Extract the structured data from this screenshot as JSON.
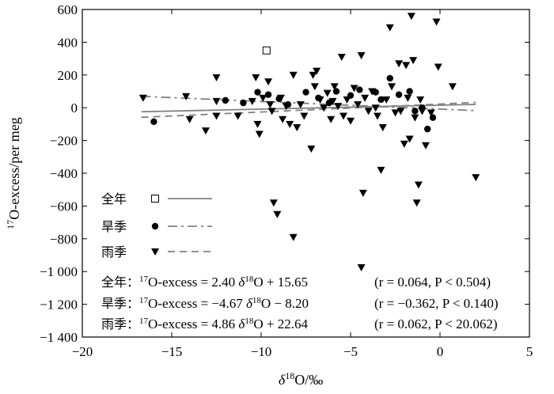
{
  "chart_data": {
    "type": "scatter",
    "xlabel": "δ18O/‰",
    "ylabel": "17O-excess/per meg",
    "xlim": [
      -20,
      5
    ],
    "ylim": [
      -1400,
      600
    ],
    "x_ticks": [
      -20,
      -15,
      -10,
      -5,
      0,
      5
    ],
    "y_ticks": [
      600,
      400,
      200,
      0,
      -200,
      -400,
      -600,
      -800,
      -1000,
      -1200,
      -1400
    ],
    "x_tick_labels": [
      "−20",
      "−15",
      "−10",
      "−5",
      "0",
      "5"
    ],
    "y_tick_labels": [
      "600",
      "400",
      "200",
      "0",
      "−200",
      "−400",
      "−600",
      "−800",
      "−1 000",
      "−1 200",
      "−1 400"
    ],
    "grid": false,
    "legend_position": "bottom-left",
    "series": [
      {
        "name": "全年",
        "marker": "square-open",
        "line_style": "solid",
        "color": "#808080",
        "fit": {
          "slope": 2.4,
          "intercept": 15.65,
          "x_range": [
            -16.7,
            2.0
          ]
        },
        "points": [
          [
            -9.7,
            350
          ]
        ]
      },
      {
        "name": "旱季",
        "marker": "circle",
        "line_style": "dashdot",
        "color": "#808080",
        "fit": {
          "slope": -4.67,
          "intercept": -8.2,
          "x_range": [
            -16.7,
            2.0
          ]
        },
        "points": [
          [
            -16.0,
            -85
          ],
          [
            -12.0,
            45
          ],
          [
            -11.0,
            30
          ],
          [
            -10.2,
            95
          ],
          [
            -9.6,
            80
          ],
          [
            -9.0,
            55
          ],
          [
            -8.5,
            20
          ],
          [
            -7.5,
            95
          ],
          [
            -6.8,
            60
          ],
          [
            -6.2,
            30
          ],
          [
            -5.8,
            100
          ],
          [
            -5.0,
            75
          ],
          [
            -4.5,
            110
          ],
          [
            -3.6,
            95
          ],
          [
            -3.3,
            50
          ],
          [
            -2.8,
            180
          ],
          [
            -2.3,
            80
          ],
          [
            -1.7,
            100
          ],
          [
            -1.4,
            -20
          ],
          [
            -1.0,
            0
          ],
          [
            -0.7,
            -130
          ],
          [
            -0.4,
            -60
          ]
        ]
      },
      {
        "name": "雨季",
        "marker": "triangle-down",
        "line_style": "dashed",
        "color": "#808080",
        "fit": {
          "slope": 4.86,
          "intercept": 22.64,
          "x_range": [
            -16.7,
            2.0
          ]
        },
        "points": [
          [
            -16.6,
            60
          ],
          [
            -14.2,
            70
          ],
          [
            -14.0,
            -70
          ],
          [
            -13.1,
            -140
          ],
          [
            -12.5,
            185
          ],
          [
            -12.5,
            40
          ],
          [
            -12.5,
            -50
          ],
          [
            -11.3,
            -50
          ],
          [
            -10.5,
            40
          ],
          [
            -10.3,
            185
          ],
          [
            -10.2,
            -100
          ],
          [
            -10.1,
            -160
          ],
          [
            -9.9,
            60
          ],
          [
            -9.6,
            160
          ],
          [
            -9.5,
            20
          ],
          [
            -9.4,
            -20
          ],
          [
            -9.3,
            -580
          ],
          [
            -9.1,
            -650
          ],
          [
            -8.9,
            60
          ],
          [
            -8.8,
            -70
          ],
          [
            -8.6,
            10
          ],
          [
            -8.4,
            -100
          ],
          [
            -8.2,
            200
          ],
          [
            -8.2,
            -790
          ],
          [
            -8.0,
            -120
          ],
          [
            -7.8,
            20
          ],
          [
            -7.6,
            -50
          ],
          [
            -7.2,
            -250
          ],
          [
            -7.1,
            200
          ],
          [
            -7.0,
            130
          ],
          [
            -6.9,
            225
          ],
          [
            -6.7,
            50
          ],
          [
            -6.5,
            0
          ],
          [
            -6.3,
            90
          ],
          [
            -6.1,
            -70
          ],
          [
            -6.0,
            40
          ],
          [
            -5.9,
            130
          ],
          [
            -5.7,
            10
          ],
          [
            -5.5,
            310
          ],
          [
            -5.4,
            -50
          ],
          [
            -5.2,
            50
          ],
          [
            -5.0,
            -80
          ],
          [
            -4.8,
            120
          ],
          [
            -4.6,
            20
          ],
          [
            -4.4,
            320
          ],
          [
            -4.3,
            -520
          ],
          [
            -4.2,
            60
          ],
          [
            -4.0,
            -20
          ],
          [
            -3.8,
            100
          ],
          [
            -3.6,
            0
          ],
          [
            -3.5,
            -50
          ],
          [
            -3.3,
            -380
          ],
          [
            -3.2,
            -120
          ],
          [
            -3.0,
            50
          ],
          [
            -2.8,
            490
          ],
          [
            -2.7,
            130
          ],
          [
            -2.5,
            -30
          ],
          [
            -2.3,
            270
          ],
          [
            -2.2,
            -20
          ],
          [
            -2.0,
            -220
          ],
          [
            -1.9,
            260
          ],
          [
            -1.8,
            60
          ],
          [
            -1.7,
            -190
          ],
          [
            -1.6,
            560
          ],
          [
            -1.5,
            290
          ],
          [
            -1.4,
            -60
          ],
          [
            -1.3,
            -580
          ],
          [
            -1.2,
            -470
          ],
          [
            -1.1,
            50
          ],
          [
            -1.0,
            -20
          ],
          [
            -0.8,
            -230
          ],
          [
            -0.5,
            -30
          ],
          [
            -0.2,
            525
          ],
          [
            -0.1,
            250
          ],
          [
            0.7,
            130
          ],
          [
            2.0,
            -425
          ],
          [
            -4.4,
            -975
          ]
        ]
      }
    ],
    "equations": [
      {
        "label": "全年：",
        "left": "17O-excess = 2.40 δ18O + 15.65",
        "stats": "(r = 0.064, P < 0.504)"
      },
      {
        "label": "旱季：",
        "left": "17O-excess = −4.67 δ18O − 8.20",
        "stats": "(r = −0.362, P < 0.140)"
      },
      {
        "label": "雨季：",
        "left": "17O-excess = 4.86 δ18O + 22.64",
        "stats": "(r = 0.062, P < 20.062)"
      }
    ]
  }
}
